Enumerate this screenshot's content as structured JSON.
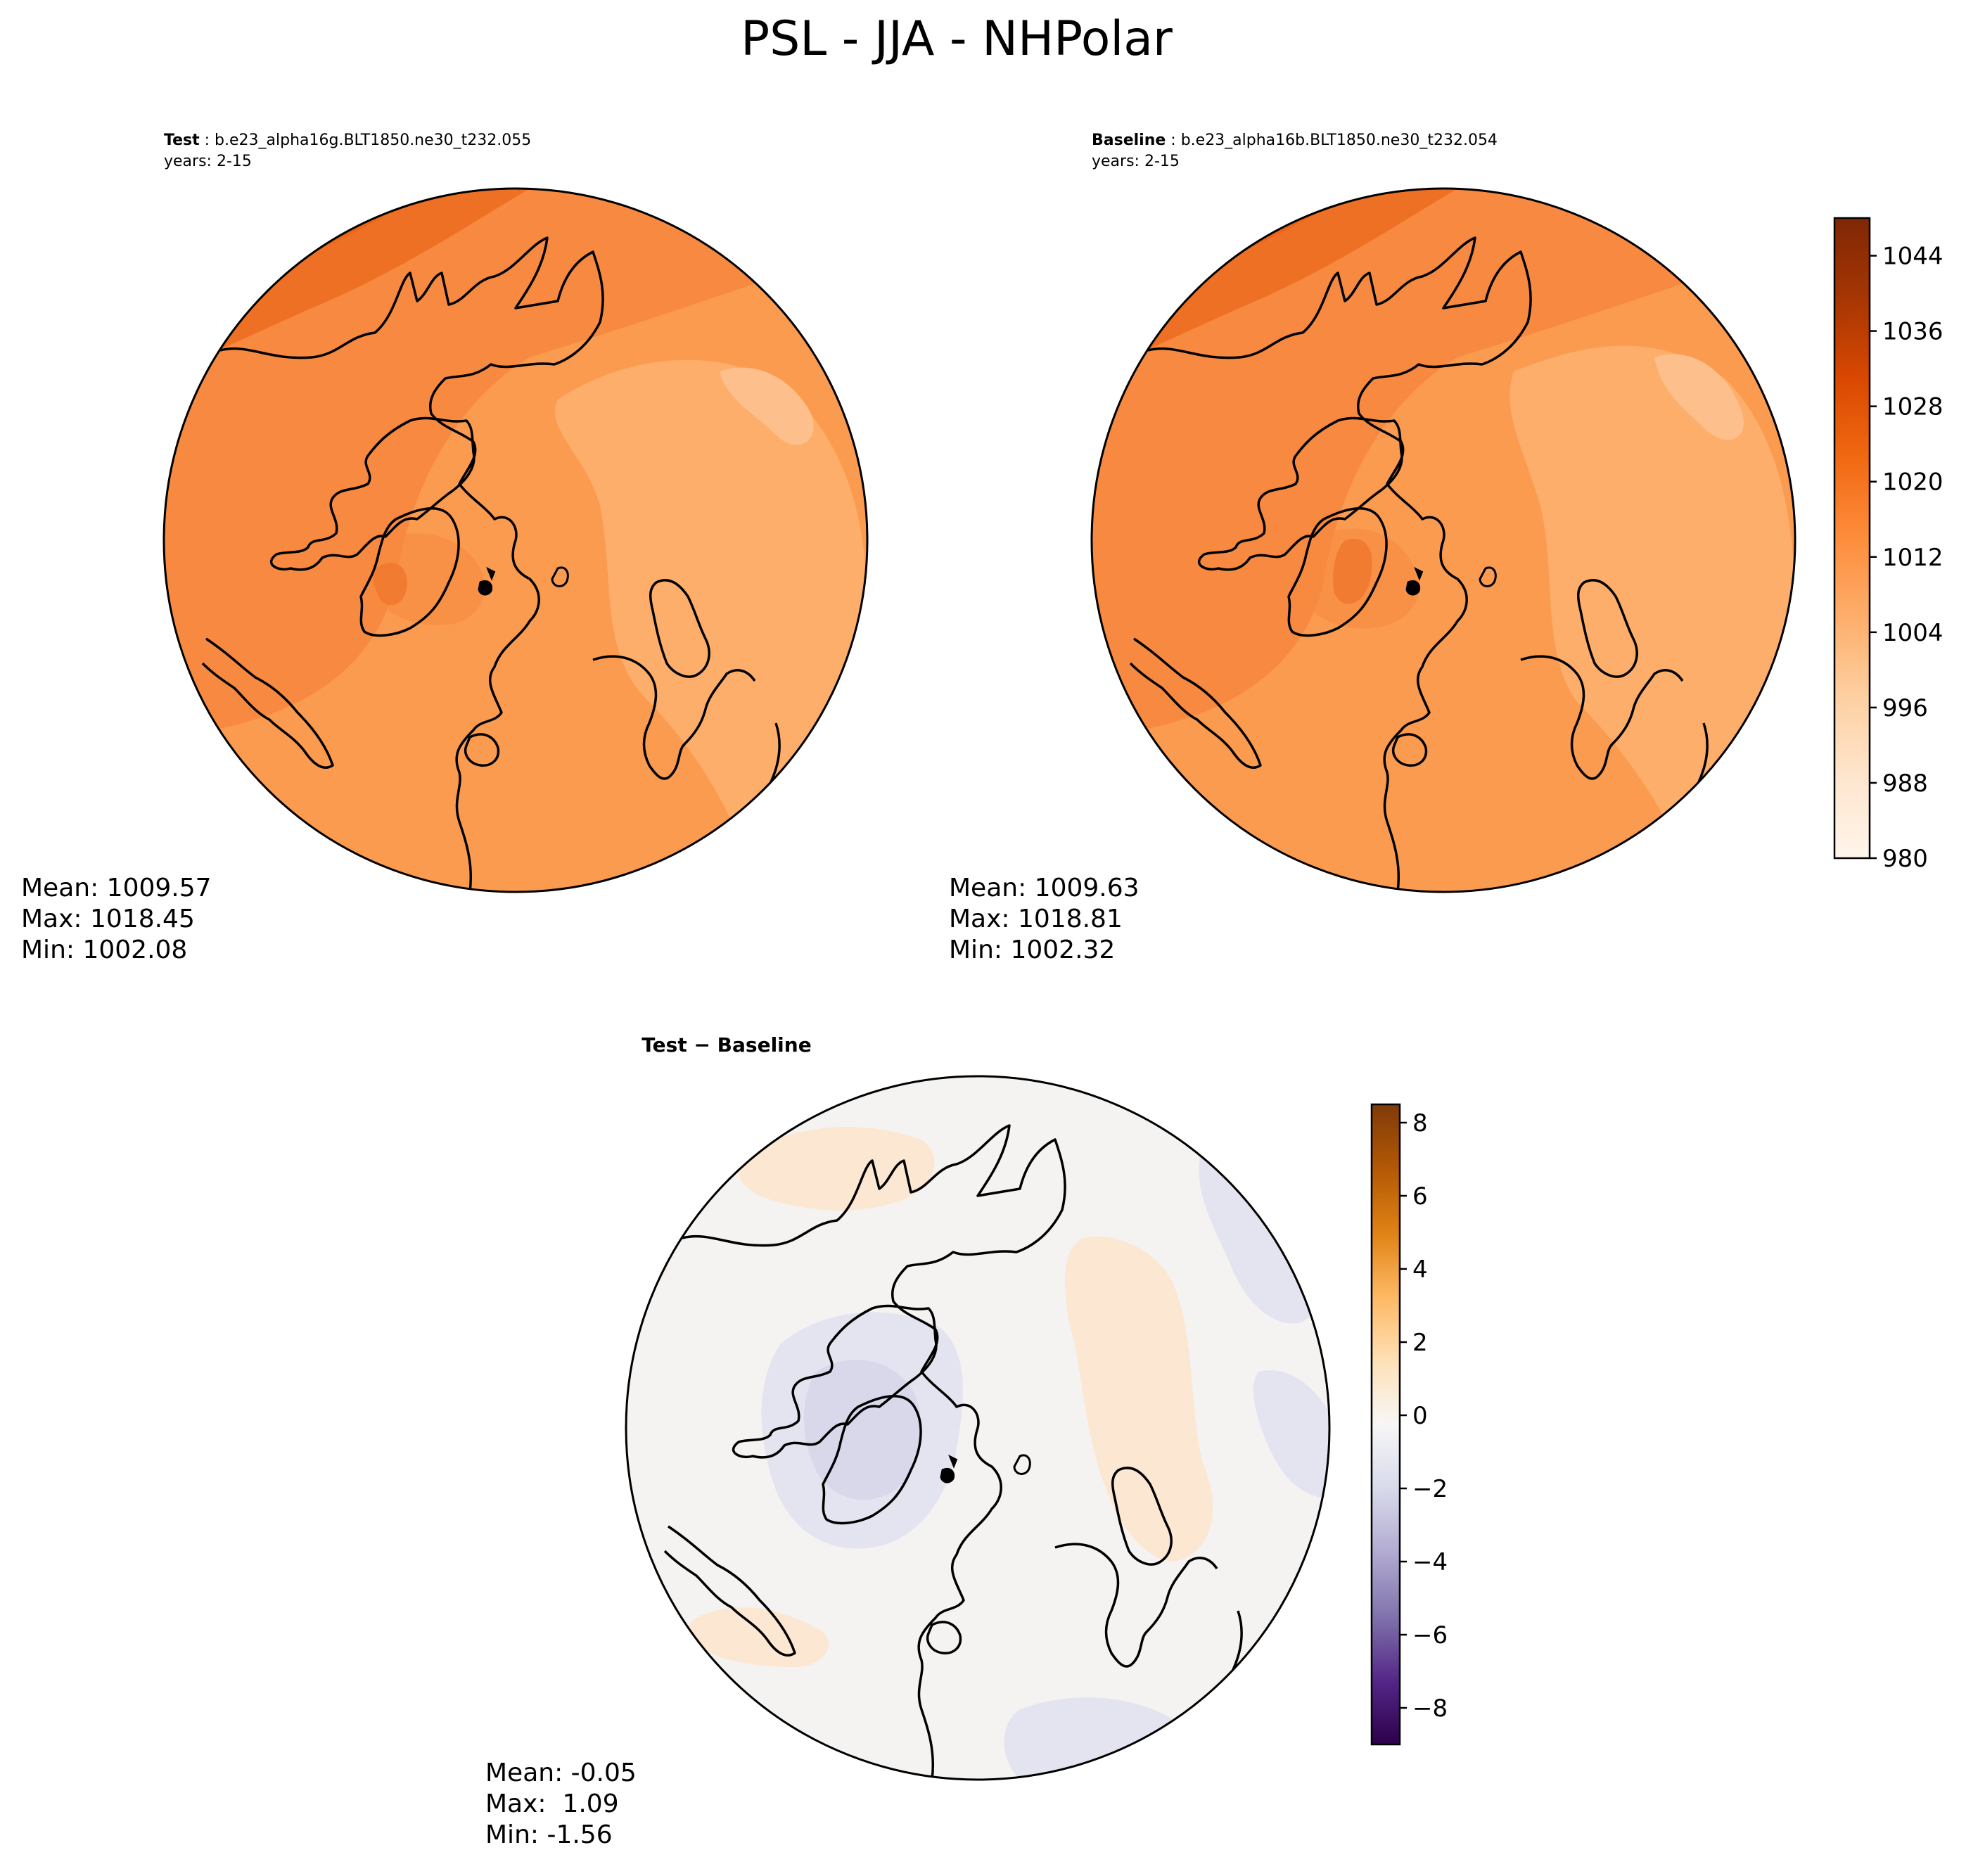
{
  "title": "PSL - JJA - NHPolar",
  "panels": {
    "test": {
      "header_label": "Test",
      "case_name": " : b.e23_alpha16g.BLT1850.ne30_t232.055",
      "years": "years: 2-15",
      "stats": [
        "Mean: 1009.57",
        "Max: 1018.45",
        "Min: 1002.08"
      ]
    },
    "baseline": {
      "header_label": "Baseline",
      "case_name": " : b.e23_alpha16b.BLT1850.ne30_t232.054",
      "years": "years: 2-15",
      "stats": [
        "Mean: 1009.63",
        "Max: 1018.81",
        "Min: 1002.32"
      ]
    },
    "diff": {
      "header_label": "Test − Baseline",
      "stats": [
        "Mean: -0.05",
        "Max:  1.09",
        "Min: -1.56"
      ]
    }
  },
  "chart_data": [
    {
      "type": "heatmap",
      "title": "Test : b.e23_alpha16g.BLT1850.ne30_t232.055",
      "projection": "north polar stereographic",
      "variable": "PSL",
      "season": "JJA",
      "colormap": "Oranges",
      "clim": [
        980,
        1048
      ],
      "mean": 1009.57,
      "max": 1018.45,
      "min": 1002.08
    },
    {
      "type": "heatmap",
      "title": "Baseline : b.e23_alpha16b.BLT1850.ne30_t232.054",
      "projection": "north polar stereographic",
      "variable": "PSL",
      "season": "JJA",
      "colormap": "Oranges",
      "clim": [
        980,
        1048
      ],
      "mean": 1009.63,
      "max": 1018.81,
      "min": 1002.32
    },
    {
      "type": "heatmap",
      "title": "Test − Baseline",
      "projection": "north polar stereographic",
      "colormap": "PuOr_r",
      "clim": [
        -9,
        8.5
      ],
      "mean": -0.05,
      "max": 1.09,
      "min": -1.56
    }
  ],
  "colorbars": {
    "abs": {
      "ticks": [
        "1044",
        "1036",
        "1028",
        "1020",
        "1012",
        "1004",
        "996",
        "988",
        "980"
      ],
      "tick_values": [
        1044,
        1036,
        1028,
        1020,
        1012,
        1004,
        996,
        988,
        980
      ],
      "range": [
        980,
        1048
      ],
      "colors": [
        "#fff5eb",
        "#fee6ce",
        "#fdd0a2",
        "#fdae6b",
        "#fd8d3c",
        "#f16913",
        "#d94801",
        "#a63603",
        "#7f2704"
      ]
    },
    "diff": {
      "ticks": [
        "8",
        "6",
        "4",
        "2",
        "0",
        "−2",
        "−4",
        "−6",
        "−8"
      ],
      "tick_values": [
        8,
        6,
        4,
        2,
        0,
        -2,
        -4,
        -6,
        -8
      ],
      "range": [
        -9,
        8.5
      ],
      "colors": [
        "#2d004b",
        "#542788",
        "#8073ac",
        "#b2abd2",
        "#d8daeb",
        "#f7f7f7",
        "#fee0b6",
        "#fdb863",
        "#e08214",
        "#b35806",
        "#7f3b08"
      ]
    }
  },
  "field_colors": {
    "abs_base": "#fb9b50",
    "abs_light": "#fdae6b",
    "abs_lighter": "#fdc08c",
    "abs_mid": "#f78a40",
    "abs_dark": "#ee7024",
    "abs_darker": "#e9651a",
    "diff_base": "#f5f3f1",
    "diff_warm": "#fbe7d2",
    "diff_cool": "#e4e3f0",
    "diff_cooler": "#d9d8eb"
  }
}
